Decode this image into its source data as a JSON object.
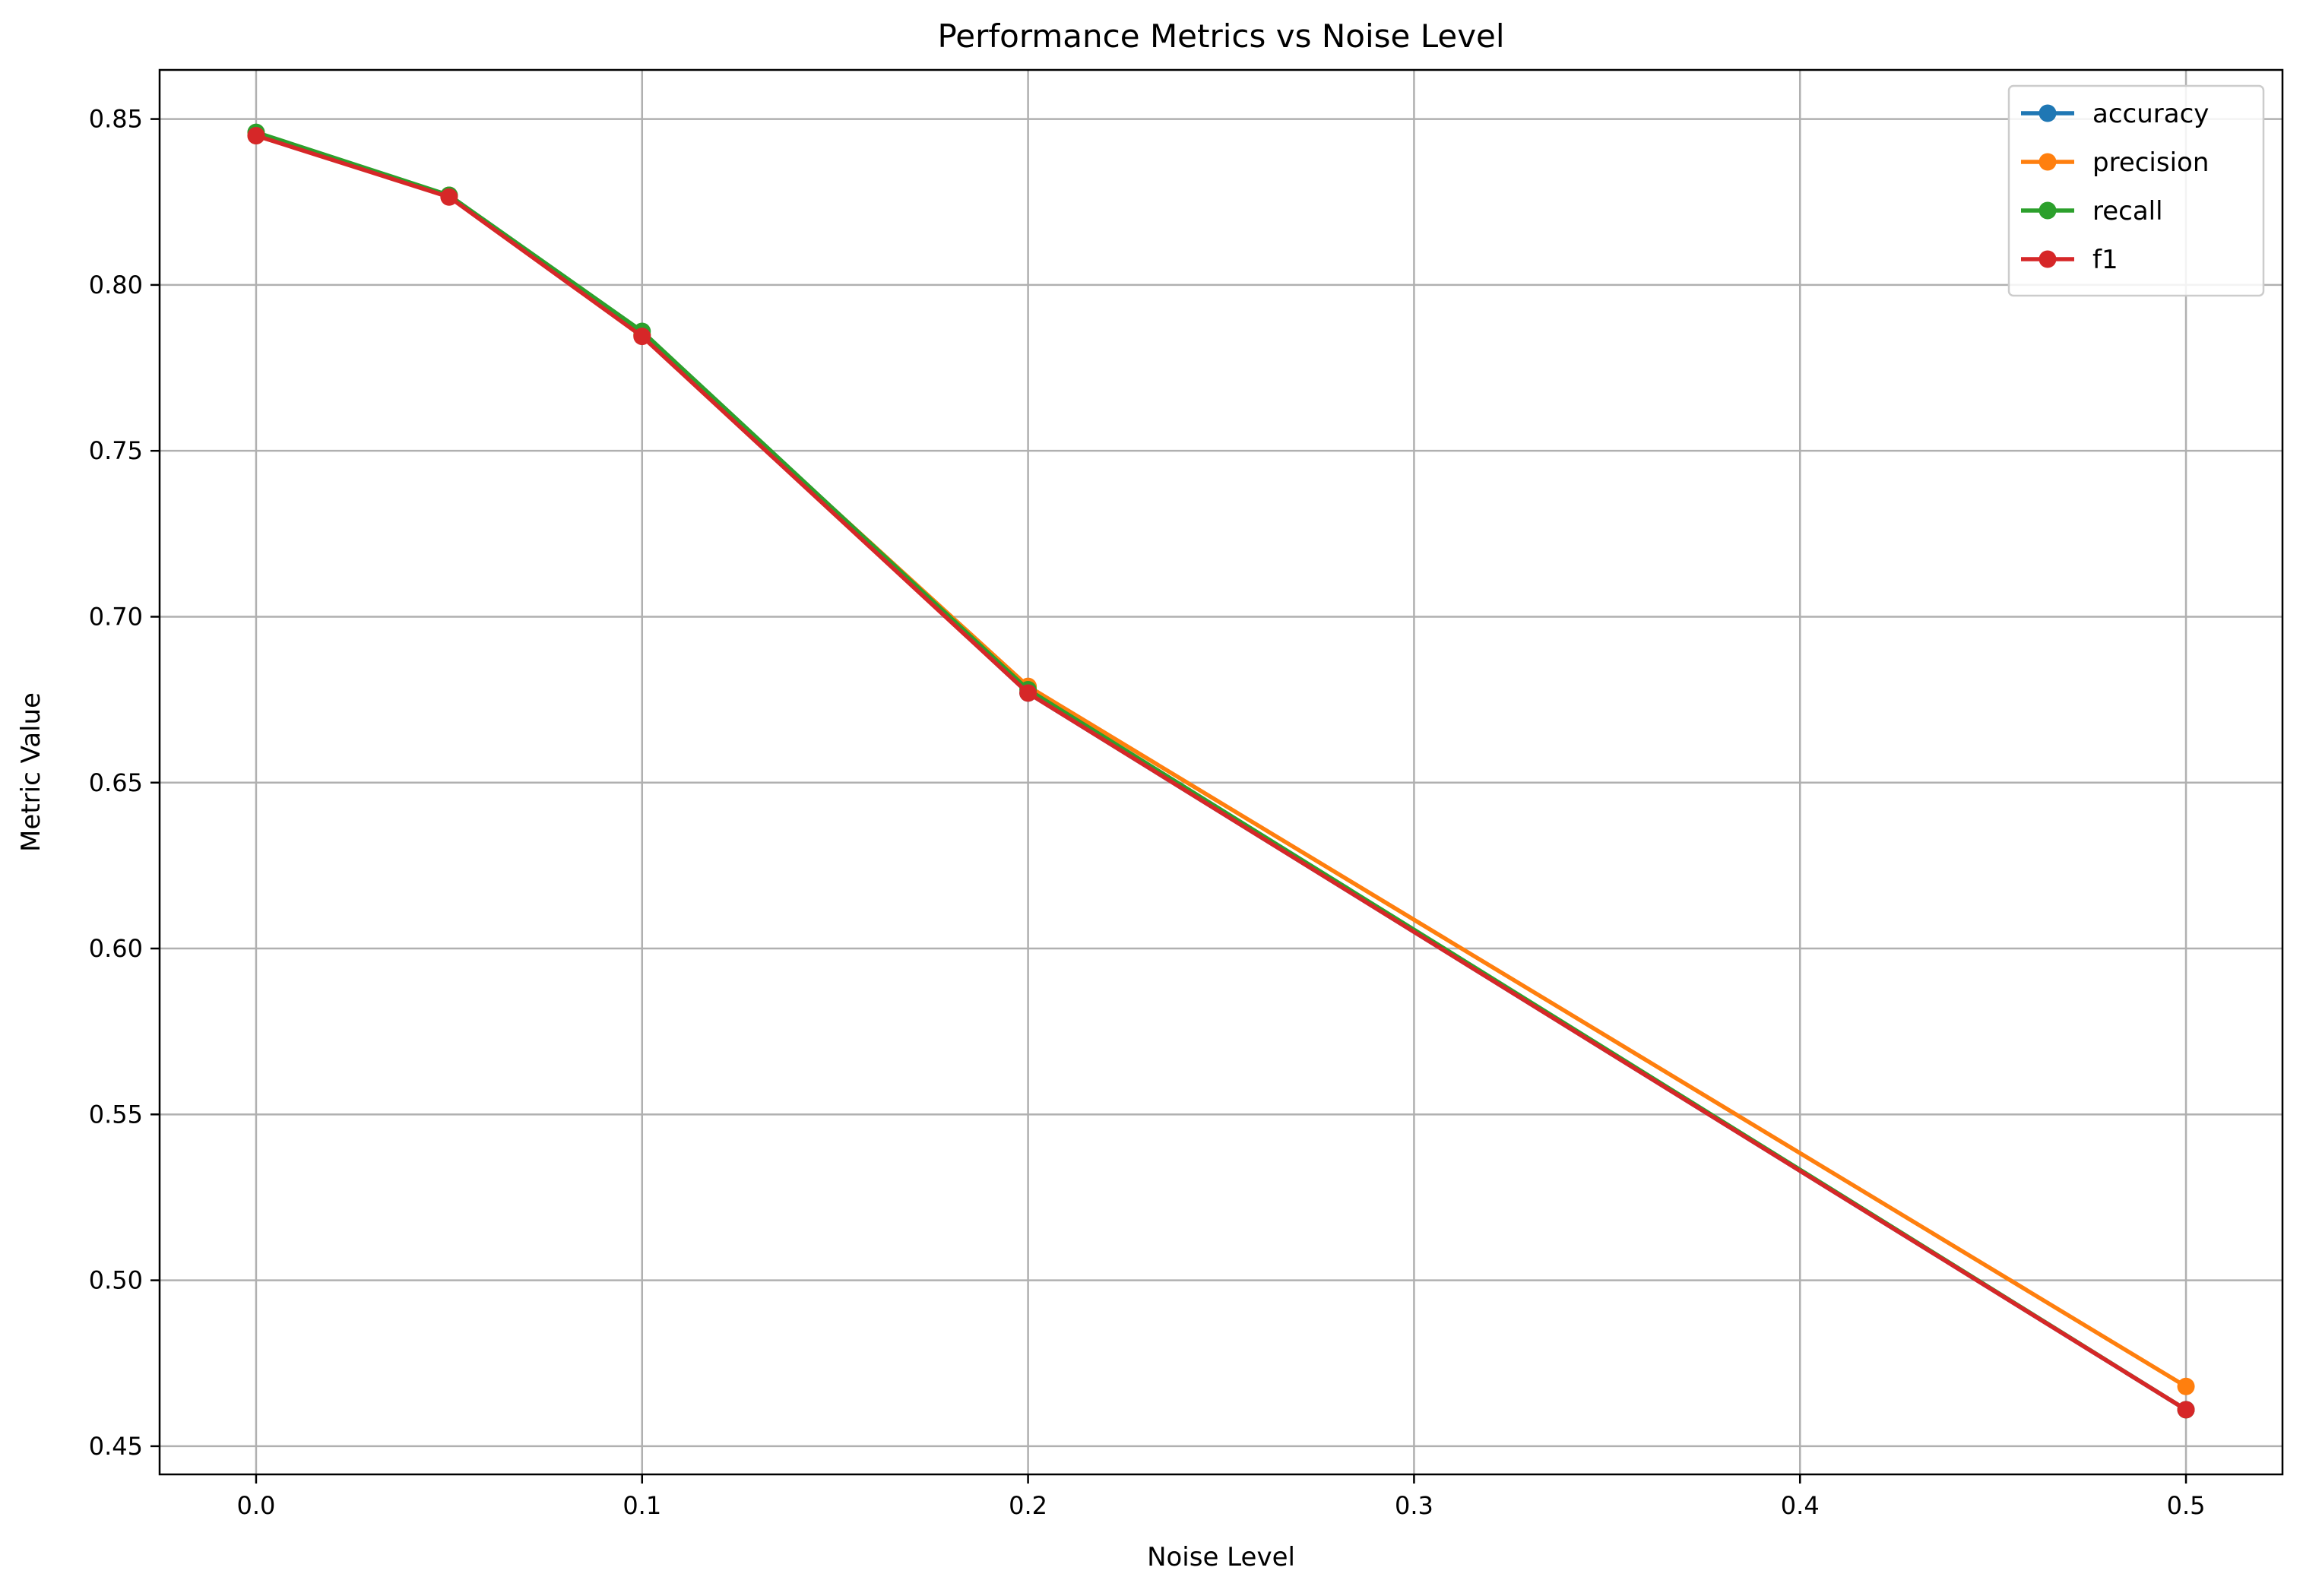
{
  "chart_data": {
    "type": "line",
    "title": "Performance Metrics vs Noise Level",
    "xlabel": "Noise Level",
    "ylabel": "Metric Value",
    "x": [
      0.0,
      0.05,
      0.1,
      0.2,
      0.5
    ],
    "xlim": [
      -0.025,
      0.525
    ],
    "ylim": [
      0.4415,
      0.8648
    ],
    "xticks": [
      0.0,
      0.1,
      0.2,
      0.3,
      0.4,
      0.5
    ],
    "xtick_labels": [
      "0.0",
      "0.1",
      "0.2",
      "0.3",
      "0.4",
      "0.5"
    ],
    "yticks": [
      0.45,
      0.5,
      0.55,
      0.6,
      0.65,
      0.7,
      0.75,
      0.8,
      0.85
    ],
    "ytick_labels": [
      "0.45",
      "0.50",
      "0.55",
      "0.60",
      "0.65",
      "0.70",
      "0.75",
      "0.80",
      "0.85"
    ],
    "grid": true,
    "legend_position": "top-right",
    "series": [
      {
        "name": "accuracy",
        "color": "#1f77b4",
        "values": [
          0.845,
          0.827,
          0.785,
          0.677,
          0.461
        ]
      },
      {
        "name": "precision",
        "color": "#ff7f0e",
        "values": [
          0.845,
          0.827,
          0.785,
          0.679,
          0.468
        ]
      },
      {
        "name": "recall",
        "color": "#2ca02c",
        "values": [
          0.846,
          0.827,
          0.786,
          0.678,
          0.461
        ]
      },
      {
        "name": "f1",
        "color": "#d62728",
        "values": [
          0.845,
          0.8265,
          0.7845,
          0.677,
          0.461
        ]
      }
    ]
  }
}
